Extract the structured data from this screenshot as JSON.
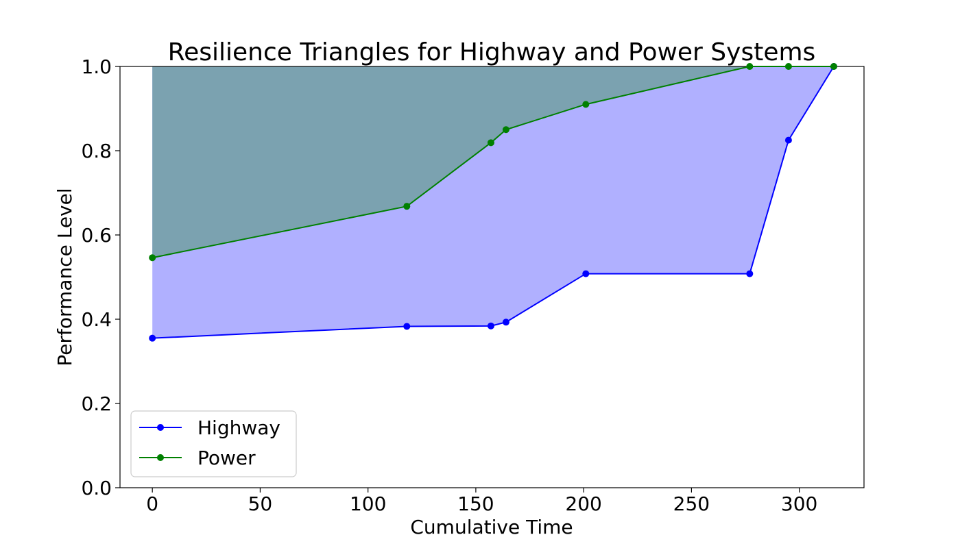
{
  "chart_data": {
    "type": "line",
    "title": "Resilience Triangles for Highway and Power Systems",
    "xlabel": "Cumulative Time",
    "ylabel": "Performance Level",
    "xlim": [
      -15,
      330
    ],
    "ylim": [
      0.0,
      1.0
    ],
    "xticks": [
      0,
      50,
      100,
      150,
      200,
      250,
      300
    ],
    "yticks": [
      0.0,
      0.2,
      0.4,
      0.6,
      0.8,
      1.0
    ],
    "xtick_labels": [
      "0",
      "50",
      "100",
      "150",
      "200",
      "250",
      "300"
    ],
    "ytick_labels": [
      "0.0",
      "0.2",
      "0.4",
      "0.6",
      "0.8",
      "1.0"
    ],
    "grid": false,
    "legend_position": "lower-left",
    "series": [
      {
        "name": "Highway",
        "color": "#0000ff",
        "fill_color": "#b0b0ff",
        "x": [
          0,
          118,
          157,
          164,
          201,
          277,
          295,
          316
        ],
        "y": [
          0.355,
          0.383,
          0.384,
          0.393,
          0.508,
          0.508,
          0.825,
          1.0
        ]
      },
      {
        "name": "Power",
        "color": "#008000",
        "fill_color": "#7ba2b0",
        "x": [
          0,
          118,
          157,
          164,
          201,
          277,
          295,
          316
        ],
        "y": [
          0.546,
          0.668,
          0.819,
          0.85,
          0.91,
          1.0,
          1.0,
          1.0
        ]
      }
    ]
  }
}
